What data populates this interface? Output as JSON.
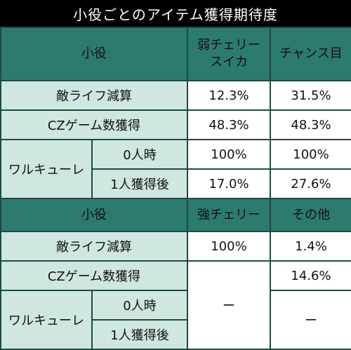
{
  "title": "小役ごとのアイテム獲得期待度",
  "section1": {
    "header": {
      "role": "小役",
      "col1": "弱チェリー\nスイカ",
      "col2": "チャンス目"
    },
    "rows": {
      "enemy_life": {
        "label": "敵ライフ減算",
        "col1": "12.3%",
        "col2": "31.5%"
      },
      "cz_game": {
        "label": "CZゲーム数獲得",
        "col1": "48.3%",
        "col2": "48.3%"
      },
      "valkyrie": {
        "label": "ワルキューレ",
        "zero": {
          "label": "0人時",
          "col1": "100%",
          "col2": "100%"
        },
        "one": {
          "label": "1人獲得後",
          "col1": "17.0%",
          "col2": "27.6%"
        }
      }
    }
  },
  "section2": {
    "header": {
      "role": "小役",
      "col1": "強チェリー",
      "col2": "その他"
    },
    "rows": {
      "enemy_life": {
        "label": "敵ライフ減算",
        "col1": "100%",
        "col2": "1.4%"
      },
      "cz_game": {
        "label": "CZゲーム数獲得",
        "col2": "14.6%"
      },
      "valkyrie": {
        "label": "ワルキューレ",
        "zero": {
          "label": "0人時"
        },
        "one": {
          "label": "1人獲得後"
        },
        "col1": "ー",
        "col2": "ー"
      }
    }
  },
  "colors": {
    "header_bg": "#2d7a6e",
    "label_bg": "#cfe6e1",
    "value_bg": "#ffffff",
    "highlight_red": "#e01010"
  }
}
